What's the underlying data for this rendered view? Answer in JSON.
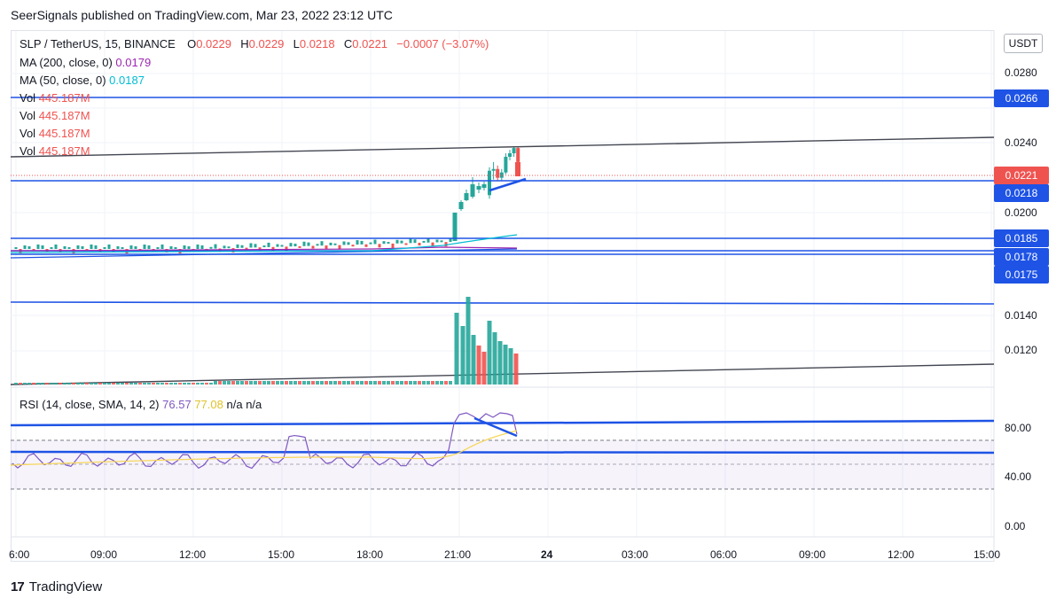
{
  "header": {
    "text": "SeerSignals published on TradingView.com, Mar 23, 2022 23:12 UTC"
  },
  "legend": {
    "symbol": "SLP / TetherUS, 15, BINANCE",
    "o_label": "O",
    "o_val": "0.0229",
    "h_label": "H",
    "h_val": "0.0229",
    "l_label": "L",
    "l_val": "0.0218",
    "c_label": "C",
    "c_val": "0.0221",
    "change": "−0.0007 (−3.07%)",
    "ma200_label": "MA (200, close, 0)",
    "ma200_val": "0.0179",
    "ma50_label": "MA (50, close, 0)",
    "ma50_val": "0.0187",
    "vol_rows": [
      {
        "label": "Vol",
        "val": "445.187M"
      },
      {
        "label": "Vol",
        "val": "445.187M"
      },
      {
        "label": "Vol",
        "val": "445.187M"
      },
      {
        "label": "Vol",
        "val": "445.187M"
      }
    ],
    "rsi_label": "RSI (14, close, SMA, 14, 2)",
    "rsi_val": "76.57",
    "rsi_sma_val": "77.08",
    "na1": "n/a",
    "na2": "n/a"
  },
  "currency_button": "USDT",
  "colors": {
    "up": "#26a69a",
    "down": "#ef5350",
    "drawing": "#1e53e5",
    "trendline": "#434651",
    "ma200": "#9c27b0",
    "ma50": "#00bcd4",
    "rsi": "#7e57c2",
    "rsi_sma": "#f7d75a"
  },
  "chart_data": [
    {
      "type": "candlestick",
      "title": "SLP / TetherUS, 15, BINANCE",
      "x_ticks": [
        "6:00",
        "09:00",
        "12:00",
        "15:00",
        "18:00",
        "21:00",
        "24",
        "03:00",
        "06:00",
        "09:00",
        "12:00",
        "15:00"
      ],
      "price_ticks": [
        "0.0280",
        "0.0240",
        "0.0200",
        "0.0140",
        "0.0120"
      ],
      "price_axis_scale": "non-linear (price axis labels as shown)",
      "last_price": "0.0221",
      "horizontal_levels": [
        "0.0266",
        "0.0218",
        "0.0185",
        "0.0178",
        "0.0175"
      ],
      "candles": [
        {
          "o": 0.021,
          "c": 0.0224,
          "h": 0.0226,
          "l": 0.0208
        },
        {
          "o": 0.0224,
          "c": 0.0225,
          "h": 0.0229,
          "l": 0.0219
        },
        {
          "o": 0.0225,
          "c": 0.022,
          "h": 0.0227,
          "l": 0.0218
        },
        {
          "o": 0.022,
          "c": 0.0223,
          "h": 0.0225,
          "l": 0.0218
        },
        {
          "o": 0.0223,
          "c": 0.0232,
          "h": 0.0234,
          "l": 0.0222
        },
        {
          "o": 0.0232,
          "c": 0.0234,
          "h": 0.0236,
          "l": 0.023
        },
        {
          "o": 0.0234,
          "c": 0.0237,
          "h": 0.0238,
          "l": 0.0232
        },
        {
          "o": 0.0237,
          "c": 0.0229,
          "h": 0.0238,
          "l": 0.0221
        }
      ],
      "series": [
        {
          "name": "MA (200, close, 0)",
          "last": 0.0179
        },
        {
          "name": "MA (50, close, 0)",
          "last": 0.0187
        }
      ]
    },
    {
      "type": "rsi",
      "title": "RSI (14, close, SMA, 14, 2)",
      "y_ticks": [
        "80.00",
        "40.00",
        "0.00"
      ],
      "bands": [
        70,
        30
      ],
      "last_rsi": 76.57,
      "last_sma": 77.08
    }
  ]
}
